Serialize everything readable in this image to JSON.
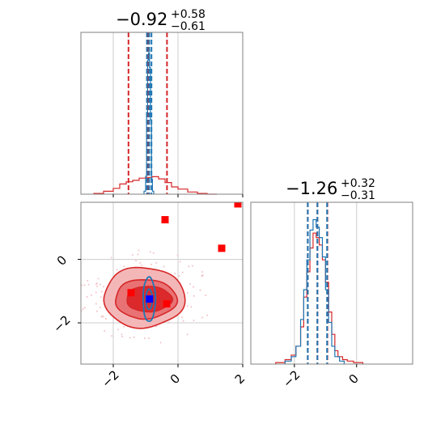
{
  "chart_data": {
    "type": "corner",
    "grid": true,
    "colors": {
      "red": "#d62728",
      "blue": "#1f77b4",
      "marker_red": "#ff0000",
      "marker_blue": "#0000ff",
      "contour_fill_light": "#f4b7b8",
      "contour_fill_mid": "#e97274",
      "contour_fill_dark": "#dc2a2c"
    },
    "parameters": [
      {
        "title_value": "−0.92",
        "title_upper": "+0.58",
        "title_lower": "−0.61",
        "xlim": [
          -3.0,
          2.0
        ],
        "xticks": [
          -2,
          0,
          2
        ],
        "xtick_labels": [
          "−2",
          "0",
          "2"
        ],
        "red_quantile_lines": [
          -1.53,
          -0.92,
          -0.34
        ],
        "blue_quantile_lines": [
          -0.96,
          -0.89,
          -0.82
        ],
        "red_histogram": {
          "bins": [
            -2.6,
            -2.3,
            -2.0,
            -1.8,
            -1.6,
            -1.4,
            -1.2,
            -1.0,
            -0.8,
            -0.6,
            -0.4,
            -0.2,
            0.0,
            0.3,
            0.6,
            0.9,
            1.2
          ],
          "heights": [
            0.005,
            0.02,
            0.04,
            0.07,
            0.085,
            0.095,
            0.11,
            0.115,
            0.12,
            0.105,
            0.08,
            0.05,
            0.035,
            0.015,
            0.005,
            0.0
          ]
        },
        "blue_histogram": {
          "bins": [
            -1.05,
            -1.0,
            -0.97,
            -0.94,
            -0.91,
            -0.88,
            -0.85,
            -0.82,
            -0.79,
            -0.75
          ],
          "heights": [
            0.02,
            0.12,
            0.55,
            0.9,
            0.95,
            0.85,
            0.5,
            0.1,
            0.02
          ]
        }
      },
      {
        "title_value": "−1.26",
        "title_upper": "+0.32",
        "title_lower": "−0.31",
        "xlim": [
          -3.4,
          1.8
        ],
        "xticks": [
          -2,
          0
        ],
        "xtick_labels": [
          "−2",
          "0"
        ],
        "ylim": [
          -3.3,
          1.8
        ],
        "yticks": [
          -2,
          0
        ],
        "ytick_labels": [
          "−2",
          "0"
        ],
        "red_quantile_lines": [
          -1.57,
          -1.26,
          -0.94
        ],
        "blue_quantile_lines": [
          -1.57,
          -1.26,
          -0.95
        ],
        "red_histogram": {
          "bins": [
            -2.6,
            -2.3,
            -2.1,
            -1.95,
            -1.8,
            -1.7,
            -1.6,
            -1.5,
            -1.4,
            -1.3,
            -1.2,
            -1.1,
            -1.0,
            -0.9,
            -0.8,
            -0.7,
            -0.6,
            -0.45,
            -0.3,
            -0.1,
            0.2
          ],
          "heights": [
            0.01,
            0.03,
            0.06,
            0.12,
            0.25,
            0.45,
            0.62,
            0.78,
            0.88,
            0.85,
            0.8,
            0.7,
            0.55,
            0.35,
            0.2,
            0.09,
            0.05,
            0.03,
            0.02,
            0.01
          ]
        },
        "blue_histogram": {
          "bins": [
            -2.3,
            -2.1,
            -1.95,
            -1.8,
            -1.7,
            -1.6,
            -1.5,
            -1.4,
            -1.3,
            -1.2,
            -1.1,
            -1.0,
            -0.9,
            -0.8,
            -0.7,
            -0.55,
            -0.4
          ],
          "heights": [
            0.02,
            0.05,
            0.12,
            0.3,
            0.5,
            0.7,
            0.9,
            0.97,
            0.92,
            0.85,
            0.72,
            0.5,
            0.28,
            0.12,
            0.05,
            0.02
          ]
        }
      }
    ],
    "joint": {
      "red_contours": [
        {
          "level": "outer",
          "cx": -1.05,
          "cy": -1.2,
          "rx": 1.25,
          "ry": 0.95
        },
        {
          "level": "middle",
          "cx": -1.0,
          "cy": -1.25,
          "rx": 0.95,
          "ry": 0.62
        },
        {
          "level": "inner",
          "cx": -0.9,
          "cy": -1.25,
          "rx": 0.7,
          "ry": 0.4
        }
      ],
      "blue_contours": [
        {
          "level": "outer",
          "cx": -0.89,
          "cy": -1.26,
          "rx": 0.19,
          "ry": 0.7
        },
        {
          "level": "inner",
          "cx": -0.89,
          "cy": -1.26,
          "rx": 0.1,
          "ry": 0.32
        }
      ],
      "red_markers": [
        {
          "x": -0.4,
          "y": 1.25
        },
        {
          "x": 1.35,
          "y": 0.35
        },
        {
          "x": -1.45,
          "y": -1.05
        },
        {
          "x": -0.35,
          "y": -1.4
        },
        {
          "x": 1.85,
          "y": 1.75
        }
      ],
      "blue_markers": [
        {
          "x": -0.88,
          "y": -1.25
        }
      ]
    }
  }
}
